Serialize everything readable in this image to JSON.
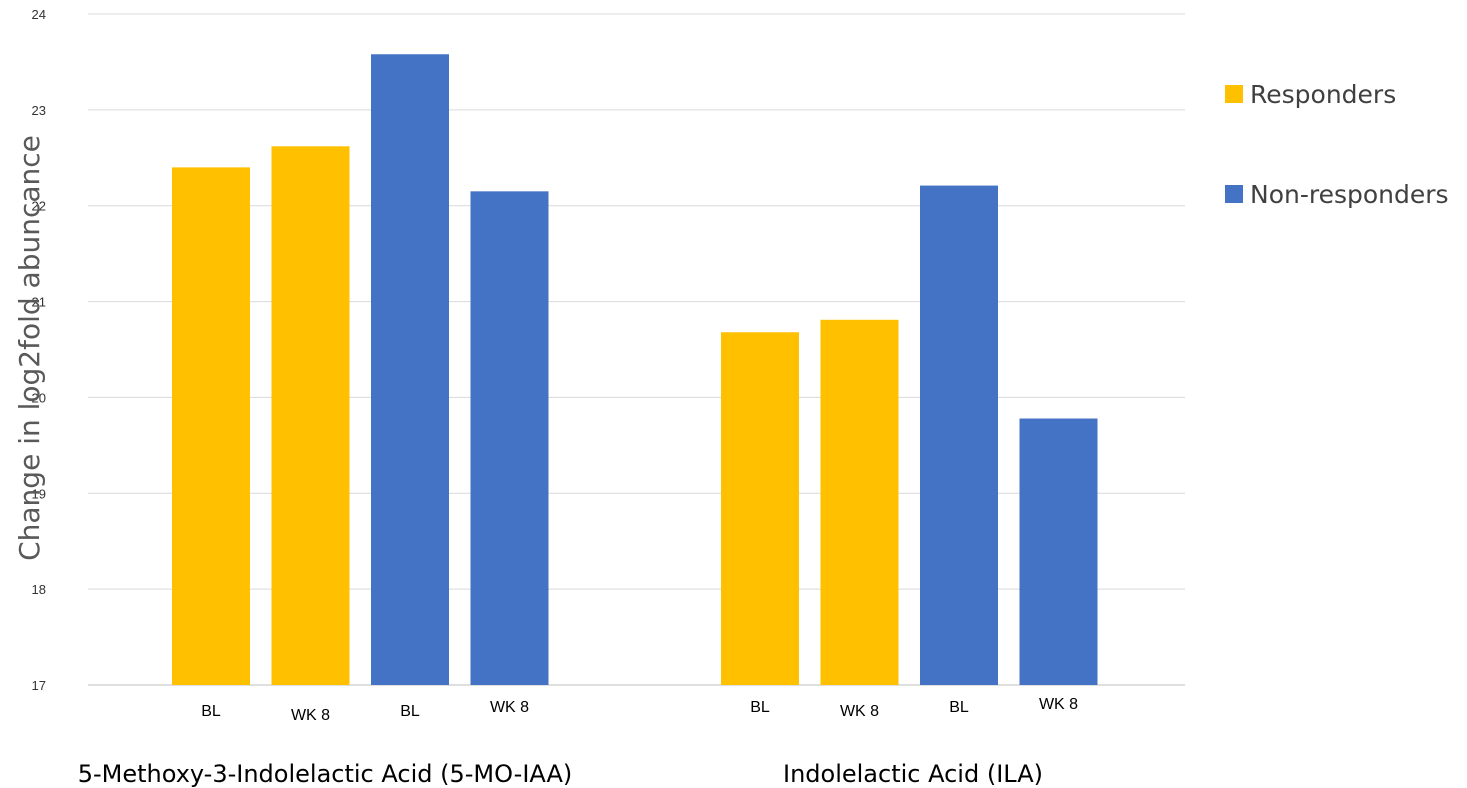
{
  "chart_data": {
    "type": "bar",
    "ylabel": "Change in log2fold abuncance",
    "ylim": [
      17,
      24
    ],
    "yticks": [
      17,
      18,
      19,
      20,
      21,
      22,
      23,
      24
    ],
    "grid": true,
    "legend_placement": "right",
    "series": [
      {
        "name": "Responders",
        "color": "#FFC000"
      },
      {
        "name": "Non-responders",
        "color": "#4472C4"
      }
    ],
    "groups": [
      {
        "label": "5-Methoxy-3-Indolelactic Acid (5-MO-IAA)",
        "bars": [
          {
            "category": "BL",
            "series": "Responders",
            "value": 22.4
          },
          {
            "category": "WK 8",
            "series": "Responders",
            "value": 22.62
          },
          {
            "category": "BL",
            "series": "Non-responders",
            "value": 23.58
          },
          {
            "category": "WK 8",
            "series": "Non-responders",
            "value": 22.15
          }
        ]
      },
      {
        "label": "Indolelactic Acid (ILA)",
        "bars": [
          {
            "category": "BL",
            "series": "Responders",
            "value": 20.68
          },
          {
            "category": "WK 8",
            "series": "Responders",
            "value": 20.81
          },
          {
            "category": "BL",
            "series": "Non-responders",
            "value": 22.21
          },
          {
            "category": "WK 8",
            "series": "Non-responders",
            "value": 19.78
          }
        ]
      }
    ]
  }
}
